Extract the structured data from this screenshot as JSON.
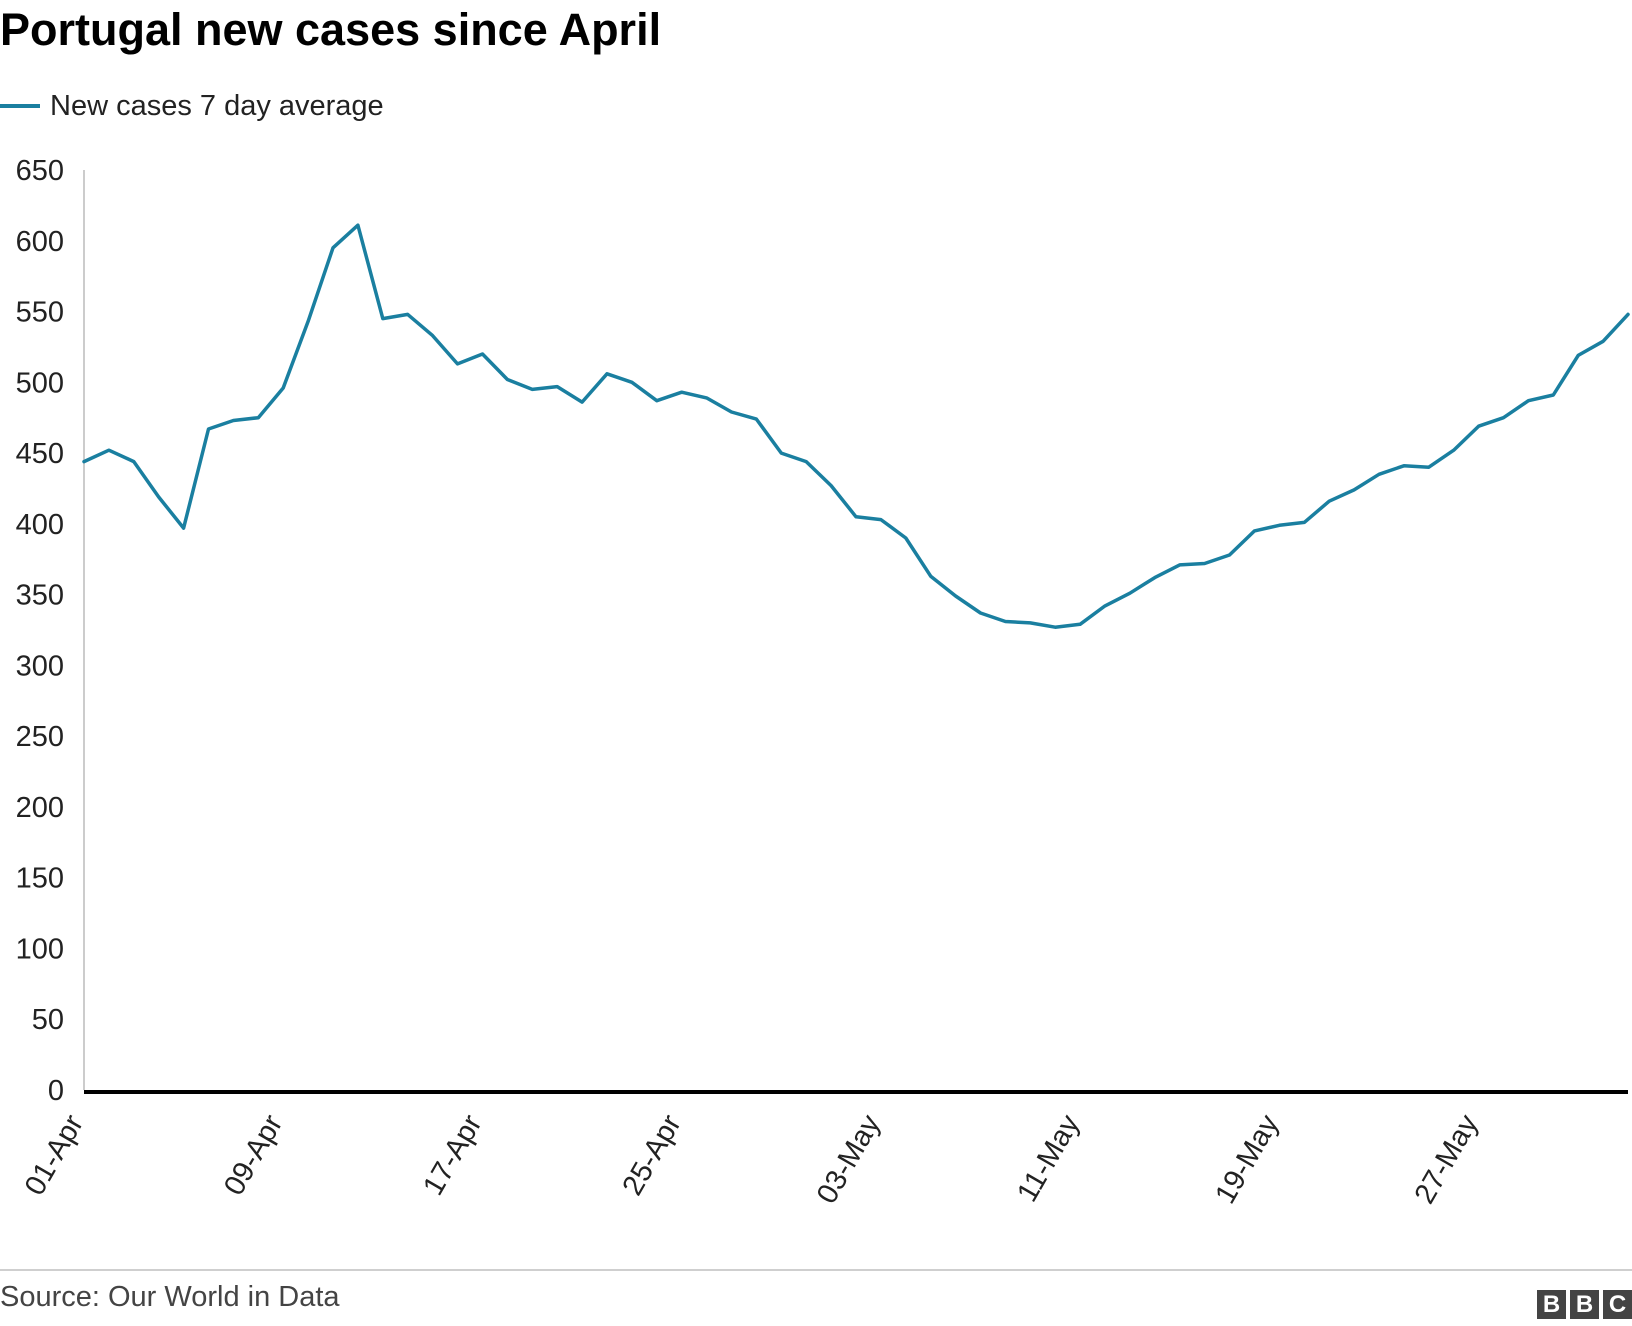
{
  "title": "Portugal new cases since April",
  "source": "Source: Our World in Data",
  "logo": {
    "letters": [
      "B",
      "B",
      "C"
    ]
  },
  "colors": {
    "line": "#1a7fa0",
    "axis": "#000000",
    "grid": "#d9d9d9",
    "text": "#222222"
  },
  "chart_data": {
    "type": "line",
    "title": "Portugal new cases since April",
    "xlabel": "",
    "ylabel": "",
    "ylim": [
      0,
      650
    ],
    "yticks": [
      0,
      50,
      100,
      150,
      200,
      250,
      300,
      350,
      400,
      450,
      500,
      550,
      600,
      650
    ],
    "xtick_labels": [
      "01-Apr",
      "09-Apr",
      "17-Apr",
      "25-Apr",
      "03-May",
      "11-May",
      "19-May",
      "27-May"
    ],
    "legend_position": "top-left",
    "grid": false,
    "series": [
      {
        "name": "New cases 7 day average",
        "x": [
          "01-Apr",
          "02-Apr",
          "03-Apr",
          "04-Apr",
          "05-Apr",
          "06-Apr",
          "07-Apr",
          "08-Apr",
          "09-Apr",
          "10-Apr",
          "11-Apr",
          "12-Apr",
          "13-Apr",
          "14-Apr",
          "15-Apr",
          "16-Apr",
          "17-Apr",
          "18-Apr",
          "19-Apr",
          "20-Apr",
          "21-Apr",
          "22-Apr",
          "23-Apr",
          "24-Apr",
          "25-Apr",
          "26-Apr",
          "27-Apr",
          "28-Apr",
          "29-Apr",
          "30-Apr",
          "01-May",
          "02-May",
          "03-May",
          "04-May",
          "05-May",
          "06-May",
          "07-May",
          "08-May",
          "09-May",
          "10-May",
          "11-May",
          "12-May",
          "13-May",
          "14-May",
          "15-May",
          "16-May",
          "17-May",
          "18-May",
          "19-May",
          "20-May",
          "21-May",
          "22-May",
          "23-May",
          "24-May",
          "25-May",
          "26-May",
          "27-May",
          "28-May",
          "29-May",
          "30-May",
          "31-May",
          "01-Jun",
          "02-Jun"
        ],
        "values": [
          444,
          452,
          444,
          419,
          397,
          467,
          473,
          475,
          496,
          543,
          595,
          611,
          545,
          548,
          533,
          513,
          520,
          502,
          495,
          497,
          486,
          506,
          500,
          487,
          493,
          489,
          479,
          474,
          450,
          444,
          427,
          405,
          403,
          390,
          363,
          349,
          337,
          331,
          330,
          327,
          329,
          342,
          351,
          362,
          371,
          372,
          378,
          395,
          399,
          401,
          416,
          424,
          435,
          441,
          440,
          452,
          469,
          475,
          487,
          491,
          519,
          529,
          548
        ]
      }
    ]
  }
}
